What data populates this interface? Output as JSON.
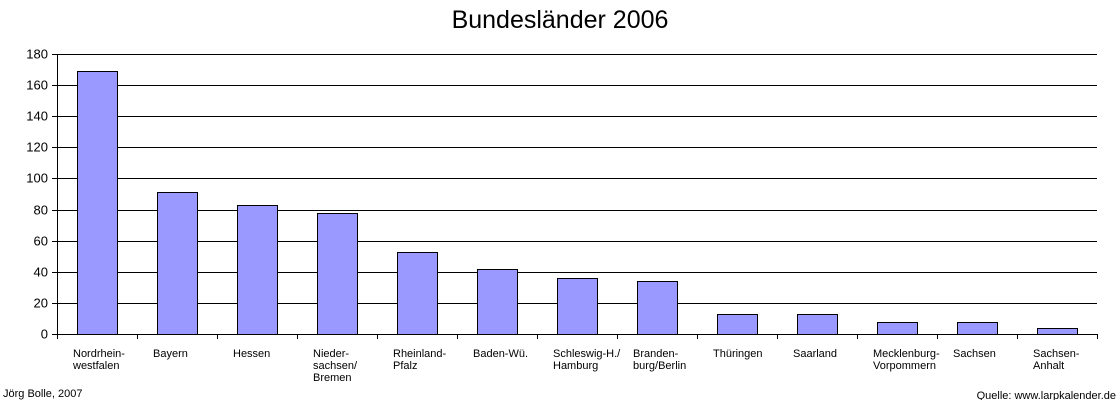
{
  "chart_data": {
    "type": "bar",
    "title": "Bundesländer 2006",
    "xlabel": "",
    "ylabel": "",
    "ylim": [
      0,
      180
    ],
    "yticks": [
      0,
      20,
      40,
      60,
      80,
      100,
      120,
      140,
      160,
      180
    ],
    "grid": true,
    "bar_color": "#9999FF",
    "categories": [
      [
        "Nordrhein-",
        "westfalen"
      ],
      [
        "Bayern"
      ],
      [
        "Hessen"
      ],
      [
        "Nieder-",
        "sachsen/",
        "Bremen"
      ],
      [
        "Rheinland-",
        "Pfalz"
      ],
      [
        "Baden-Wü."
      ],
      [
        "Schleswig-H./",
        "Hamburg"
      ],
      [
        "Branden-",
        "burg/Berlin"
      ],
      [
        "Thüringen"
      ],
      [
        "Saarland"
      ],
      [
        "Mecklenburg-",
        "Vorpommern"
      ],
      [
        "Sachsen"
      ],
      [
        "Sachsen-",
        "Anhalt"
      ]
    ],
    "values": [
      169,
      91,
      83,
      78,
      53,
      42,
      36,
      34,
      13,
      13,
      8,
      8,
      4
    ]
  },
  "footer": {
    "author": "Jörg Bolle, 2007",
    "source": "Quelle: www.larpkalender.de"
  }
}
